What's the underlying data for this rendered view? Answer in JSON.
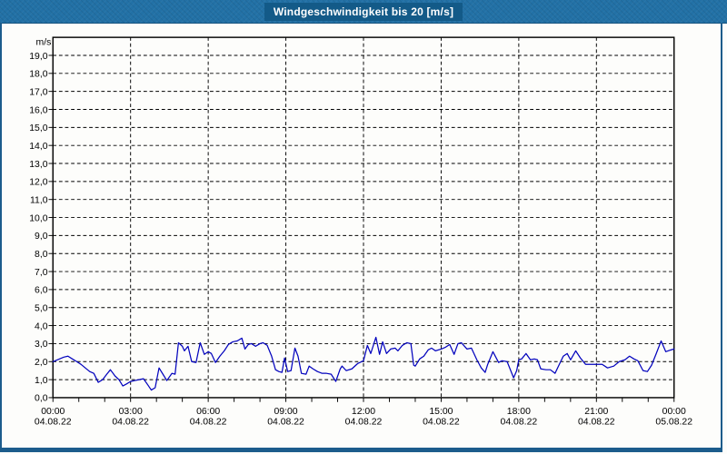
{
  "window": {
    "title": "Windgeschwindigkeit bis 20 [m/s]"
  },
  "colors": {
    "frame": "#1c5c8c",
    "titlebar_bg": "#2271a6",
    "title_box_bg": "#135a88",
    "title_text": "#ffffff",
    "plot_bg": "#fdfdfb",
    "grid": "#000000",
    "axis": "#000000",
    "tick_text": "#000000",
    "line": "#0202bd"
  },
  "chart_data": {
    "type": "line",
    "title": "Windgeschwindigkeit bis 20 [m/s]",
    "unit_label": "m/s",
    "grid": {
      "style": "dashed",
      "horizontal_every": 1,
      "vertical_every_hours": 3
    },
    "legend": "none",
    "y_axis": {
      "min": 0,
      "max": 20,
      "tick_step": 1,
      "tick_labels": [
        "0,0",
        "1,0",
        "2,0",
        "3,0",
        "4,0",
        "5,0",
        "6,0",
        "7,0",
        "8,0",
        "9,0",
        "10,0",
        "11,0",
        "12,0",
        "13,0",
        "14,0",
        "15,0",
        "16,0",
        "17,0",
        "18,0",
        "19,0"
      ]
    },
    "x_axis": {
      "range_hours": [
        0,
        24
      ],
      "minor_tick_hours": 1,
      "ticks": [
        {
          "hour": 0,
          "time": "00:00",
          "date": "04.08.22"
        },
        {
          "hour": 3,
          "time": "03:00",
          "date": "04.08.22"
        },
        {
          "hour": 6,
          "time": "06:00",
          "date": "04.08.22"
        },
        {
          "hour": 9,
          "time": "09:00",
          "date": "04.08.22"
        },
        {
          "hour": 12,
          "time": "12:00",
          "date": "04.08.22"
        },
        {
          "hour": 15,
          "time": "15:00",
          "date": "04.08.22"
        },
        {
          "hour": 18,
          "time": "18:00",
          "date": "04.08.22"
        },
        {
          "hour": 21,
          "time": "21:00",
          "date": "04.08.22"
        },
        {
          "hour": 24,
          "time": "00:00",
          "date": "05.08.22"
        }
      ]
    },
    "series": [
      {
        "name": "Windgeschwindigkeit",
        "unit": "m/s",
        "color": "#0202bd",
        "points": [
          [
            0.0,
            2.0
          ],
          [
            0.17,
            2.1
          ],
          [
            0.42,
            2.25
          ],
          [
            0.58,
            2.3
          ],
          [
            0.75,
            2.15
          ],
          [
            0.92,
            2.0
          ],
          [
            1.08,
            1.85
          ],
          [
            1.25,
            1.65
          ],
          [
            1.42,
            1.45
          ],
          [
            1.58,
            1.35
          ],
          [
            1.75,
            0.85
          ],
          [
            1.92,
            1.0
          ],
          [
            2.08,
            1.3
          ],
          [
            2.22,
            1.55
          ],
          [
            2.4,
            1.2
          ],
          [
            2.55,
            1.0
          ],
          [
            2.7,
            0.65
          ],
          [
            2.83,
            0.75
          ],
          [
            3.0,
            0.9
          ],
          [
            3.17,
            0.95
          ],
          [
            3.33,
            1.0
          ],
          [
            3.5,
            1.05
          ],
          [
            3.67,
            0.7
          ],
          [
            3.8,
            0.42
          ],
          [
            3.95,
            0.55
          ],
          [
            4.1,
            1.65
          ],
          [
            4.25,
            1.3
          ],
          [
            4.4,
            0.95
          ],
          [
            4.6,
            1.35
          ],
          [
            4.72,
            1.3
          ],
          [
            4.85,
            3.05
          ],
          [
            5.0,
            2.85
          ],
          [
            5.08,
            2.6
          ],
          [
            5.22,
            2.85
          ],
          [
            5.36,
            2.0
          ],
          [
            5.53,
            1.95
          ],
          [
            5.69,
            3.05
          ],
          [
            5.85,
            2.4
          ],
          [
            6.0,
            2.55
          ],
          [
            6.12,
            2.45
          ],
          [
            6.28,
            1.95
          ],
          [
            6.45,
            2.3
          ],
          [
            6.62,
            2.6
          ],
          [
            6.78,
            2.95
          ],
          [
            6.95,
            3.1
          ],
          [
            7.12,
            3.15
          ],
          [
            7.3,
            3.3
          ],
          [
            7.42,
            2.7
          ],
          [
            7.55,
            2.95
          ],
          [
            7.67,
            3.0
          ],
          [
            7.83,
            2.85
          ],
          [
            8.0,
            3.0
          ],
          [
            8.12,
            3.05
          ],
          [
            8.28,
            2.9
          ],
          [
            8.45,
            2.3
          ],
          [
            8.6,
            1.55
          ],
          [
            8.73,
            1.45
          ],
          [
            8.85,
            1.4
          ],
          [
            8.95,
            2.2
          ],
          [
            9.07,
            1.45
          ],
          [
            9.2,
            1.5
          ],
          [
            9.35,
            2.75
          ],
          [
            9.47,
            2.3
          ],
          [
            9.6,
            1.35
          ],
          [
            9.78,
            1.3
          ],
          [
            9.9,
            1.75
          ],
          [
            10.05,
            1.6
          ],
          [
            10.22,
            1.45
          ],
          [
            10.4,
            1.35
          ],
          [
            10.57,
            1.35
          ],
          [
            10.75,
            1.3
          ],
          [
            10.93,
            0.9
          ],
          [
            11.1,
            1.6
          ],
          [
            11.17,
            1.75
          ],
          [
            11.33,
            1.5
          ],
          [
            11.55,
            1.6
          ],
          [
            11.78,
            1.9
          ],
          [
            12.0,
            2.05
          ],
          [
            12.15,
            2.9
          ],
          [
            12.28,
            2.45
          ],
          [
            12.48,
            3.35
          ],
          [
            12.62,
            2.4
          ],
          [
            12.74,
            3.1
          ],
          [
            12.89,
            2.45
          ],
          [
            13.05,
            2.7
          ],
          [
            13.22,
            2.75
          ],
          [
            13.33,
            2.6
          ],
          [
            13.5,
            2.9
          ],
          [
            13.67,
            3.05
          ],
          [
            13.83,
            3.0
          ],
          [
            13.94,
            1.8
          ],
          [
            14.0,
            1.75
          ],
          [
            14.17,
            2.15
          ],
          [
            14.33,
            2.3
          ],
          [
            14.5,
            2.65
          ],
          [
            14.63,
            2.75
          ],
          [
            14.78,
            2.6
          ],
          [
            15.0,
            2.7
          ],
          [
            15.17,
            2.8
          ],
          [
            15.33,
            2.95
          ],
          [
            15.5,
            2.4
          ],
          [
            15.65,
            3.0
          ],
          [
            15.78,
            3.05
          ],
          [
            16.0,
            2.7
          ],
          [
            16.17,
            2.75
          ],
          [
            16.38,
            2.1
          ],
          [
            16.55,
            1.65
          ],
          [
            16.7,
            1.4
          ],
          [
            16.8,
            1.85
          ],
          [
            17.0,
            2.55
          ],
          [
            17.22,
            1.95
          ],
          [
            17.35,
            2.05
          ],
          [
            17.55,
            2.0
          ],
          [
            17.8,
            1.1
          ],
          [
            17.92,
            1.5
          ],
          [
            18.0,
            2.1
          ],
          [
            18.11,
            2.15
          ],
          [
            18.28,
            2.45
          ],
          [
            18.45,
            2.1
          ],
          [
            18.6,
            2.15
          ],
          [
            18.72,
            2.1
          ],
          [
            18.85,
            1.6
          ],
          [
            19.05,
            1.55
          ],
          [
            19.22,
            1.55
          ],
          [
            19.4,
            1.35
          ],
          [
            19.55,
            1.8
          ],
          [
            19.72,
            2.3
          ],
          [
            19.87,
            2.45
          ],
          [
            20.0,
            2.1
          ],
          [
            20.2,
            2.6
          ],
          [
            20.38,
            2.2
          ],
          [
            20.58,
            1.85
          ],
          [
            20.78,
            1.85
          ],
          [
            21.0,
            1.85
          ],
          [
            21.22,
            1.85
          ],
          [
            21.43,
            1.65
          ],
          [
            21.67,
            1.75
          ],
          [
            21.88,
            2.0
          ],
          [
            22.1,
            2.1
          ],
          [
            22.28,
            2.3
          ],
          [
            22.45,
            2.15
          ],
          [
            22.6,
            2.05
          ],
          [
            22.8,
            1.5
          ],
          [
            22.97,
            1.45
          ],
          [
            23.13,
            1.8
          ],
          [
            23.3,
            2.4
          ],
          [
            23.5,
            3.15
          ],
          [
            23.68,
            2.55
          ],
          [
            23.88,
            2.65
          ],
          [
            24.0,
            2.7
          ]
        ]
      }
    ]
  }
}
